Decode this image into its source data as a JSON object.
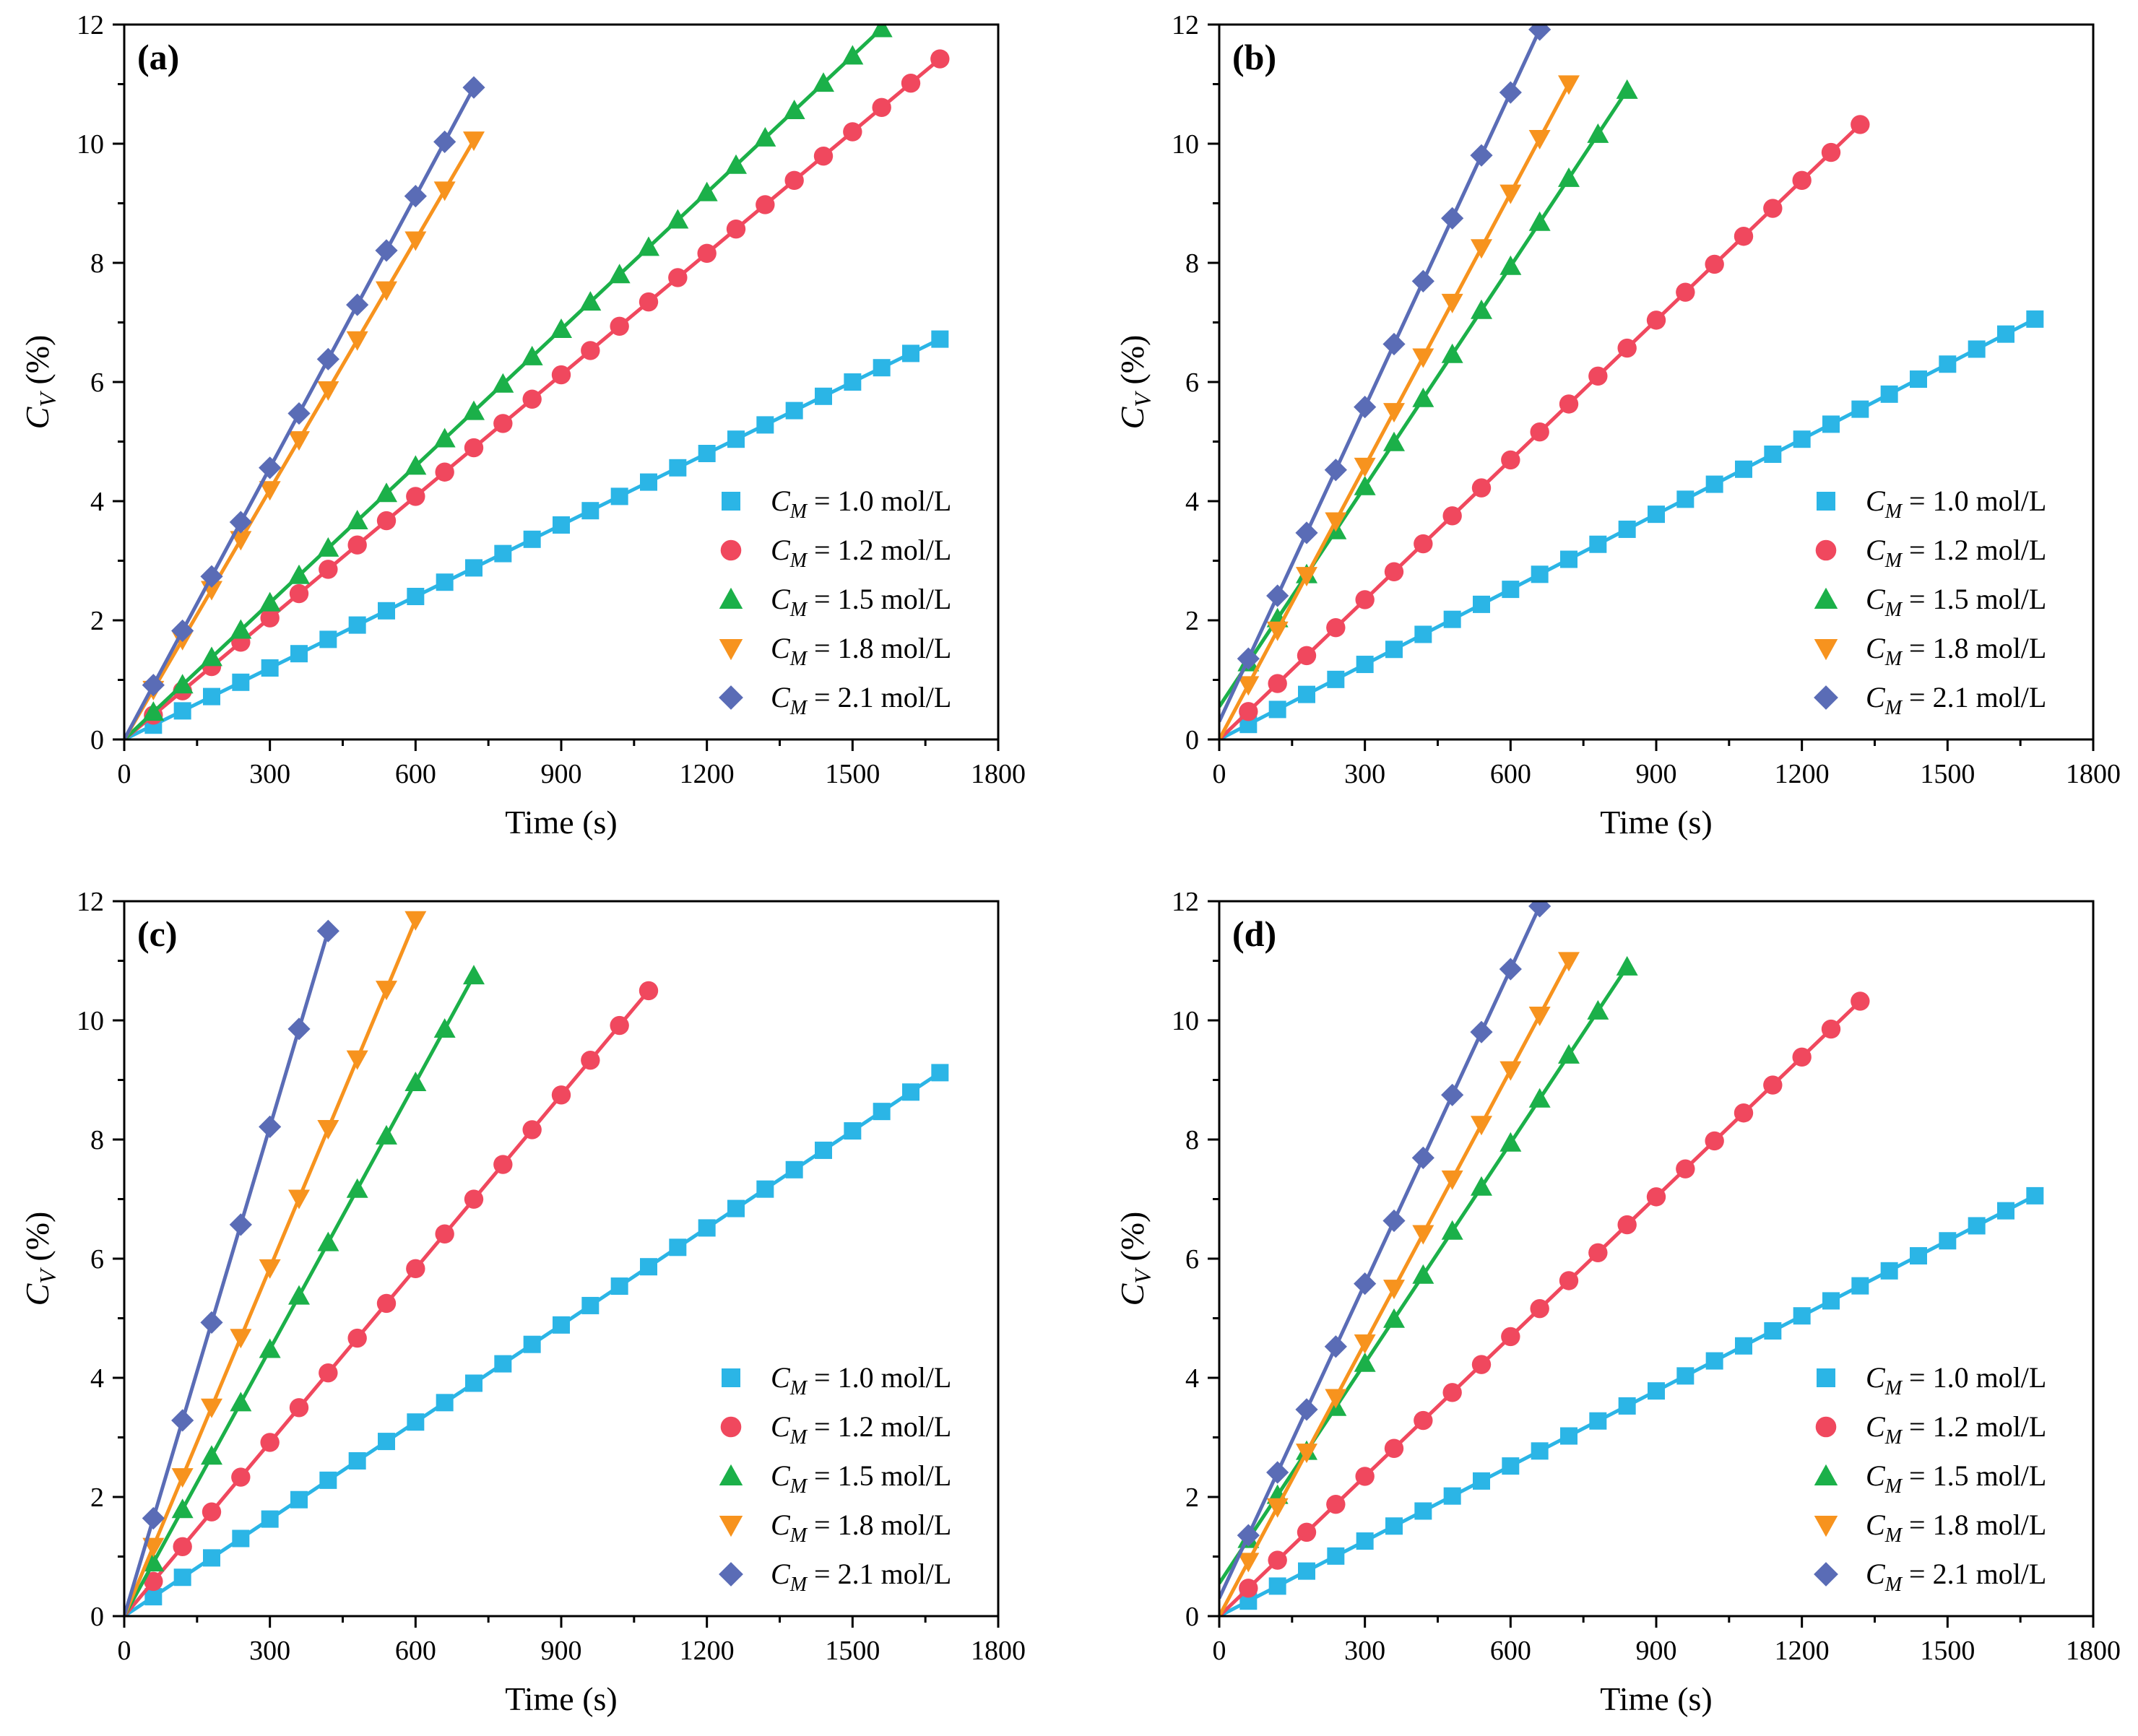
{
  "figure": {
    "legend_prefix": "C",
    "legend_subscript": "M",
    "legend_equals": "=",
    "ylabel_main": "C",
    "ylabel_sub": "V",
    "ylabel_unit": "(%)"
  },
  "series_meta": [
    {
      "name": "1.0 mol/L",
      "color": "#2bb5e6",
      "marker": "square"
    },
    {
      "name": "1.2 mol/L",
      "color": "#f0485e",
      "marker": "circle"
    },
    {
      "name": "1.5 mol/L",
      "color": "#1bb049",
      "marker": "triangle-up"
    },
    {
      "name": "1.8 mol/L",
      "color": "#f7931e",
      "marker": "triangle-down"
    },
    {
      "name": "2.1 mol/L",
      "color": "#5a6cb6",
      "marker": "diamond"
    }
  ],
  "chart_data": [
    {
      "type": "scatter",
      "panel_label": "(a)",
      "xlabel": "Time (s)",
      "ylabel": "C_V (%)",
      "xlim": [
        0,
        1800
      ],
      "ylim": [
        0,
        12
      ],
      "xticks": [
        0,
        300,
        600,
        900,
        1200,
        1500,
        1800
      ],
      "yticks": [
        0,
        2,
        4,
        6,
        8,
        10,
        12
      ],
      "legend_position": "bottom-right",
      "series": [
        {
          "name": "1.0 mol/L",
          "intercept": 0,
          "slope": 0.004,
          "x_end": 1680
        },
        {
          "name": "1.2 mol/L",
          "intercept": 0,
          "slope": 0.0068,
          "x_end": 1680
        },
        {
          "name": "1.5 mol/L",
          "intercept": 0,
          "slope": 0.00765,
          "x_end": 1560
        },
        {
          "name": "1.8 mol/L",
          "intercept": 0,
          "slope": 0.01397,
          "x_end": 720
        },
        {
          "name": "2.1 mol/L",
          "intercept": 0,
          "slope": 0.0152,
          "x_end": 720
        }
      ]
    },
    {
      "type": "scatter",
      "panel_label": "(b)",
      "xlabel": "Time (s)",
      "ylabel": "C_V (%)",
      "xlim": [
        0,
        1800
      ],
      "ylim": [
        0,
        12
      ],
      "xticks": [
        0,
        300,
        600,
        900,
        1200,
        1500,
        1800
      ],
      "yticks": [
        0,
        2,
        4,
        6,
        8,
        10,
        12
      ],
      "legend_position": "bottom-right",
      "series": [
        {
          "name": "1.0 mol/L",
          "intercept": 0,
          "slope": 0.0042,
          "x_end": 1680
        },
        {
          "name": "1.2 mol/L",
          "intercept": 0,
          "slope": 0.00782,
          "x_end": 1320
        },
        {
          "name": "1.5 mol/L",
          "intercept": 0.55,
          "slope": 0.01232,
          "x_end": 840
        },
        {
          "name": "1.8 mol/L",
          "intercept": 0,
          "slope": 0.01528,
          "x_end": 720
        },
        {
          "name": "2.1 mol/L",
          "intercept": 0.3,
          "slope": 0.0176,
          "x_end": 660
        }
      ]
    },
    {
      "type": "scatter",
      "panel_label": "(c)",
      "xlabel": "Time (s)",
      "ylabel": "C_V (%)",
      "xlim": [
        0,
        1800
      ],
      "ylim": [
        0,
        12
      ],
      "xticks": [
        0,
        300,
        600,
        900,
        1200,
        1500,
        1800
      ],
      "yticks": [
        0,
        2,
        4,
        6,
        8,
        10,
        12
      ],
      "legend_position": "bottom-right",
      "series": [
        {
          "name": "1.0 mol/L",
          "intercept": 0,
          "slope": 0.00543,
          "x_end": 1680
        },
        {
          "name": "1.2 mol/L",
          "intercept": 0,
          "slope": 0.00972,
          "x_end": 1080
        },
        {
          "name": "1.5 mol/L",
          "intercept": 0,
          "slope": 0.01493,
          "x_end": 720
        },
        {
          "name": "1.8 mol/L",
          "intercept": 0,
          "slope": 0.01948,
          "x_end": 600
        },
        {
          "name": "2.1 mol/L",
          "intercept": 0,
          "slope": 0.02738,
          "x_end": 420
        }
      ]
    },
    {
      "type": "scatter",
      "panel_label": "(d)",
      "xlabel": "Time (s)",
      "ylabel": "C_V (%)",
      "xlim": [
        0,
        1800
      ],
      "ylim": [
        0,
        12
      ],
      "xticks": [
        0,
        300,
        600,
        900,
        1200,
        1500,
        1800
      ],
      "yticks": [
        0,
        2,
        4,
        6,
        8,
        10,
        12
      ],
      "legend_position": "bottom-right",
      "series": [
        {
          "name": "1.0 mol/L",
          "intercept": 0,
          "slope": 0.0042,
          "x_end": 1680
        },
        {
          "name": "1.2 mol/L",
          "intercept": 0,
          "slope": 0.00782,
          "x_end": 1320
        },
        {
          "name": "1.5 mol/L",
          "intercept": 0.55,
          "slope": 0.01232,
          "x_end": 840
        },
        {
          "name": "1.8 mol/L",
          "intercept": 0,
          "slope": 0.01528,
          "x_end": 720
        },
        {
          "name": "2.1 mol/L",
          "intercept": 0.3,
          "slope": 0.0176,
          "x_end": 660
        }
      ]
    }
  ]
}
